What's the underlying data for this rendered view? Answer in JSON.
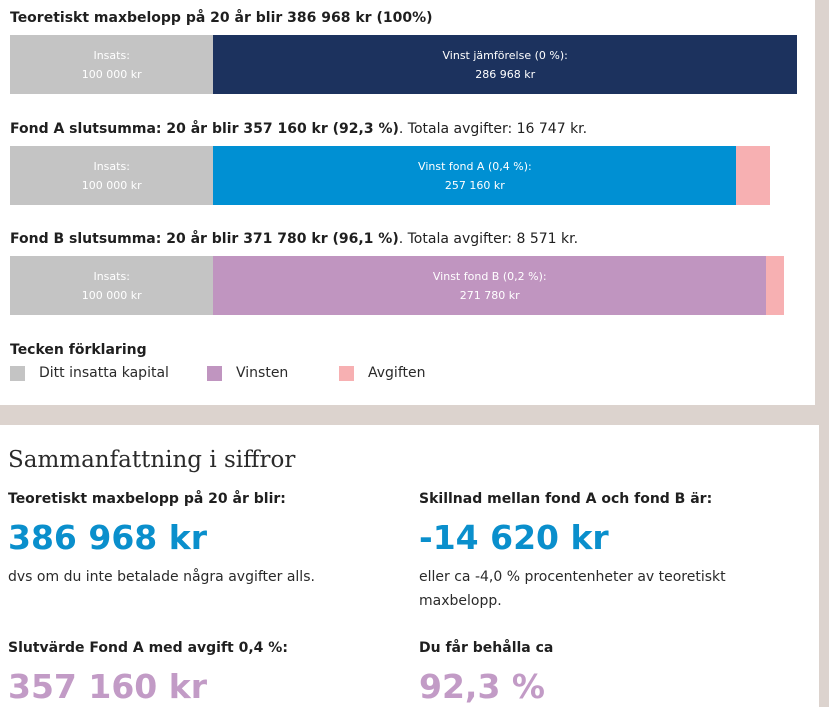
{
  "colors": {
    "insats": "#c4c4c4",
    "theoretical_gain": "#1c325e",
    "fund_a_gain": "#0090d3",
    "fund_b_gain": "#c095c0",
    "fee": "#f7b0b2",
    "accent_blue": "#0a8fcc",
    "accent_purple": "#c29bc6"
  },
  "rows": [
    {
      "title_prefix": "Teoretiskt maxbelopp på 20 år blir ",
      "title_amount": "386 968 kr",
      "title_percent": " (100%)",
      "title_suffix": "",
      "insats_label": "Insats:",
      "insats_value": "100 000 kr",
      "gain_label": "Vinst jämförelse (0 %):",
      "gain_value": "286 968 kr"
    },
    {
      "title_prefix": "Fond A slutsumma: 20 år blir ",
      "title_amount": "357 160 kr",
      "title_percent": " (92,3 %)",
      "title_suffix": ". Totala avgifter: 16 747 kr.",
      "insats_label": "Insats:",
      "insats_value": "100 000 kr",
      "gain_label": "Vinst fond A (0,4 %):",
      "gain_value": "257 160 kr"
    },
    {
      "title_prefix": "Fond B slutsumma: 20 år blir ",
      "title_amount": "371 780 kr",
      "title_percent": " (96,1 %)",
      "title_suffix": ". Totala avgifter: 8 571 kr.",
      "insats_label": "Insats:",
      "insats_value": "100 000 kr",
      "gain_label": "Vinst fond B (0,2 %):",
      "gain_value": "271 780 kr"
    }
  ],
  "chart_data": {
    "type": "bar",
    "orientation": "horizontal-stacked",
    "categories": [
      "Teoretiskt maxbelopp",
      "Fond A",
      "Fond B"
    ],
    "series": [
      {
        "name": "Ditt insatta kapital",
        "values": [
          100000,
          100000,
          100000
        ]
      },
      {
        "name": "Vinsten",
        "values": [
          286968,
          257160,
          271780
        ]
      },
      {
        "name": "Avgiften",
        "values": [
          0,
          16747,
          8571
        ]
      }
    ],
    "scale_max": 386968,
    "legend_title": "Tecken förklaring",
    "legend": [
      "Ditt insatta kapital",
      "Vinsten",
      "Avgiften"
    ]
  },
  "legend": {
    "title": "Tecken förklaring",
    "items": [
      {
        "label": "Ditt insatta kapital",
        "color": "#c4c4c4"
      },
      {
        "label": "Vinsten",
        "color": "#c095c0"
      },
      {
        "label": "Avgiften",
        "color": "#f7b0b2"
      }
    ]
  },
  "summary": {
    "title": "Sammanfattning i siffror",
    "left": {
      "label1": "Teoretiskt maxbelopp på 20 år blir:",
      "value1": "386 968 kr",
      "note1": "dvs om du inte betalade några avgifter alls.",
      "label2": "Slutvärde Fond A med avgift 0,4 %:",
      "value2": "357 160 kr"
    },
    "right": {
      "label1": "Skillnad mellan fond A och fond B är:",
      "value1": "-14 620 kr",
      "note1": "eller ca -4,0 % procentenheter av teoretiskt maxbelopp.",
      "label2": "Du får behålla ca",
      "value2": "92,3 %"
    }
  }
}
